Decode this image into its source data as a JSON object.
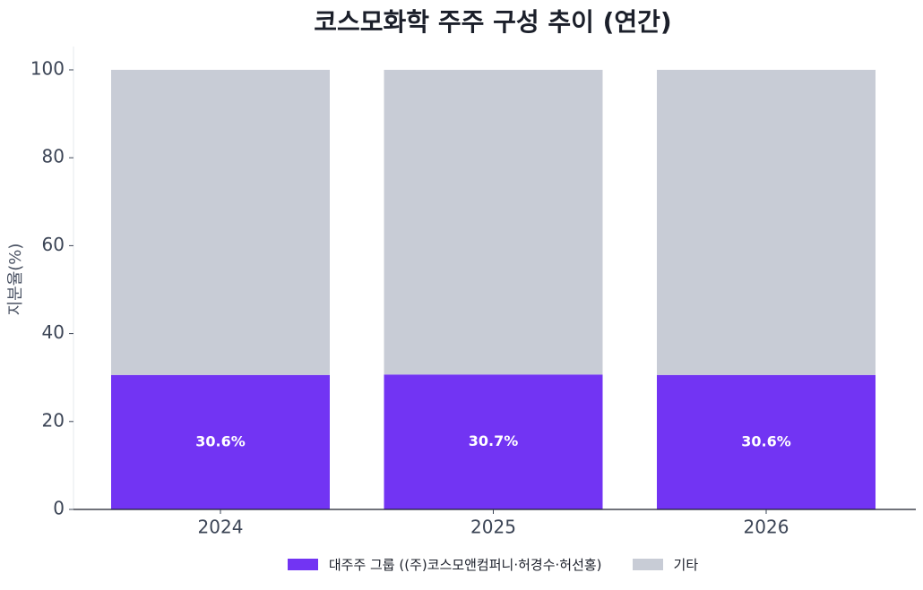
{
  "chart_data": {
    "type": "bar",
    "stacked": true,
    "title": "코스모화학 주주 구성 추이 (연간)",
    "xlabel": "",
    "ylabel": "지분율(%)",
    "categories": [
      "2024",
      "2025",
      "2026"
    ],
    "ylim": [
      0,
      100
    ],
    "yticks": [
      0,
      20,
      40,
      60,
      80,
      100
    ],
    "series": [
      {
        "name": "대주주 그룹 ((주)코스모앤컴퍼니·허경수·허선홍)",
        "color": "#7234f3",
        "values": [
          30.6,
          30.7,
          30.6
        ],
        "labels": [
          "30.6%",
          "30.7%",
          "30.6%"
        ]
      },
      {
        "name": "기타",
        "color": "#c8ccd6",
        "values": [
          69.4,
          69.3,
          69.4
        ]
      }
    ],
    "legend_position": "bottom-center",
    "grid": false
  }
}
